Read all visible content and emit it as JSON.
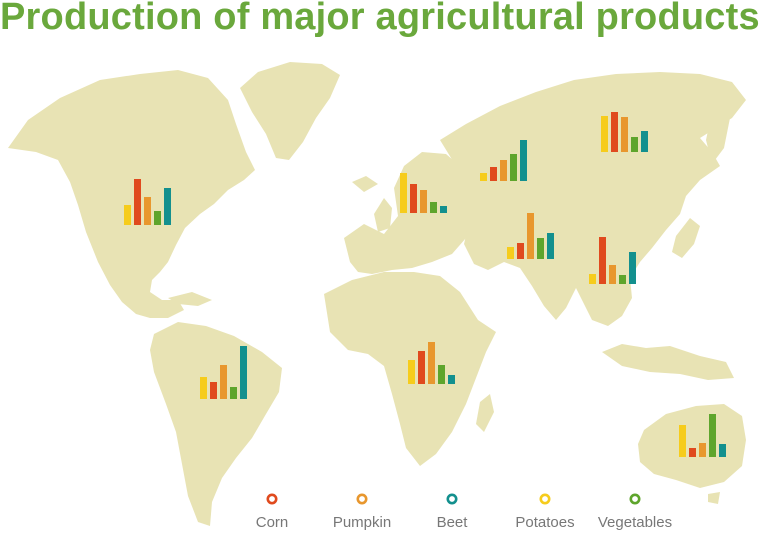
{
  "title": "Production of major agricultural products",
  "colors": {
    "land": "#e8e3b4",
    "title": "#6aa83c",
    "Corn": "#e04a1e",
    "Pumpkin": "#e8972e",
    "Beet": "#13908e",
    "Potatoes": "#f6cc1c",
    "Vegetables": "#5ea52c"
  },
  "chart_data": {
    "type": "bar",
    "title": "Production of major agricultural products",
    "legend_placement": "bottom",
    "grid": false,
    "series_names": [
      "Potatoes",
      "Corn",
      "Pumpkin",
      "Vegetables",
      "Beet"
    ],
    "legend": [
      "Corn",
      "Pumpkin",
      "Beet",
      "Potatoes",
      "Vegetables"
    ],
    "groups": [
      {
        "id": "north-america",
        "values": [
          20,
          46,
          28,
          14,
          37
        ]
      },
      {
        "id": "south-america",
        "values": [
          22,
          17,
          34,
          12,
          53
        ]
      },
      {
        "id": "europe",
        "values": [
          40,
          29,
          23,
          11,
          7
        ]
      },
      {
        "id": "africa",
        "values": [
          24,
          33,
          42,
          19,
          9
        ]
      },
      {
        "id": "russia",
        "values": [
          8,
          14,
          21,
          27,
          41
        ]
      },
      {
        "id": "east-asia",
        "values": [
          36,
          40,
          35,
          15,
          21
        ]
      },
      {
        "id": "middle-asia",
        "values": [
          12,
          16,
          46,
          21,
          26
        ]
      },
      {
        "id": "south-asia",
        "values": [
          10,
          47,
          19,
          9,
          32
        ]
      },
      {
        "id": "australia",
        "values": [
          32,
          9,
          14,
          43,
          13
        ]
      }
    ]
  }
}
